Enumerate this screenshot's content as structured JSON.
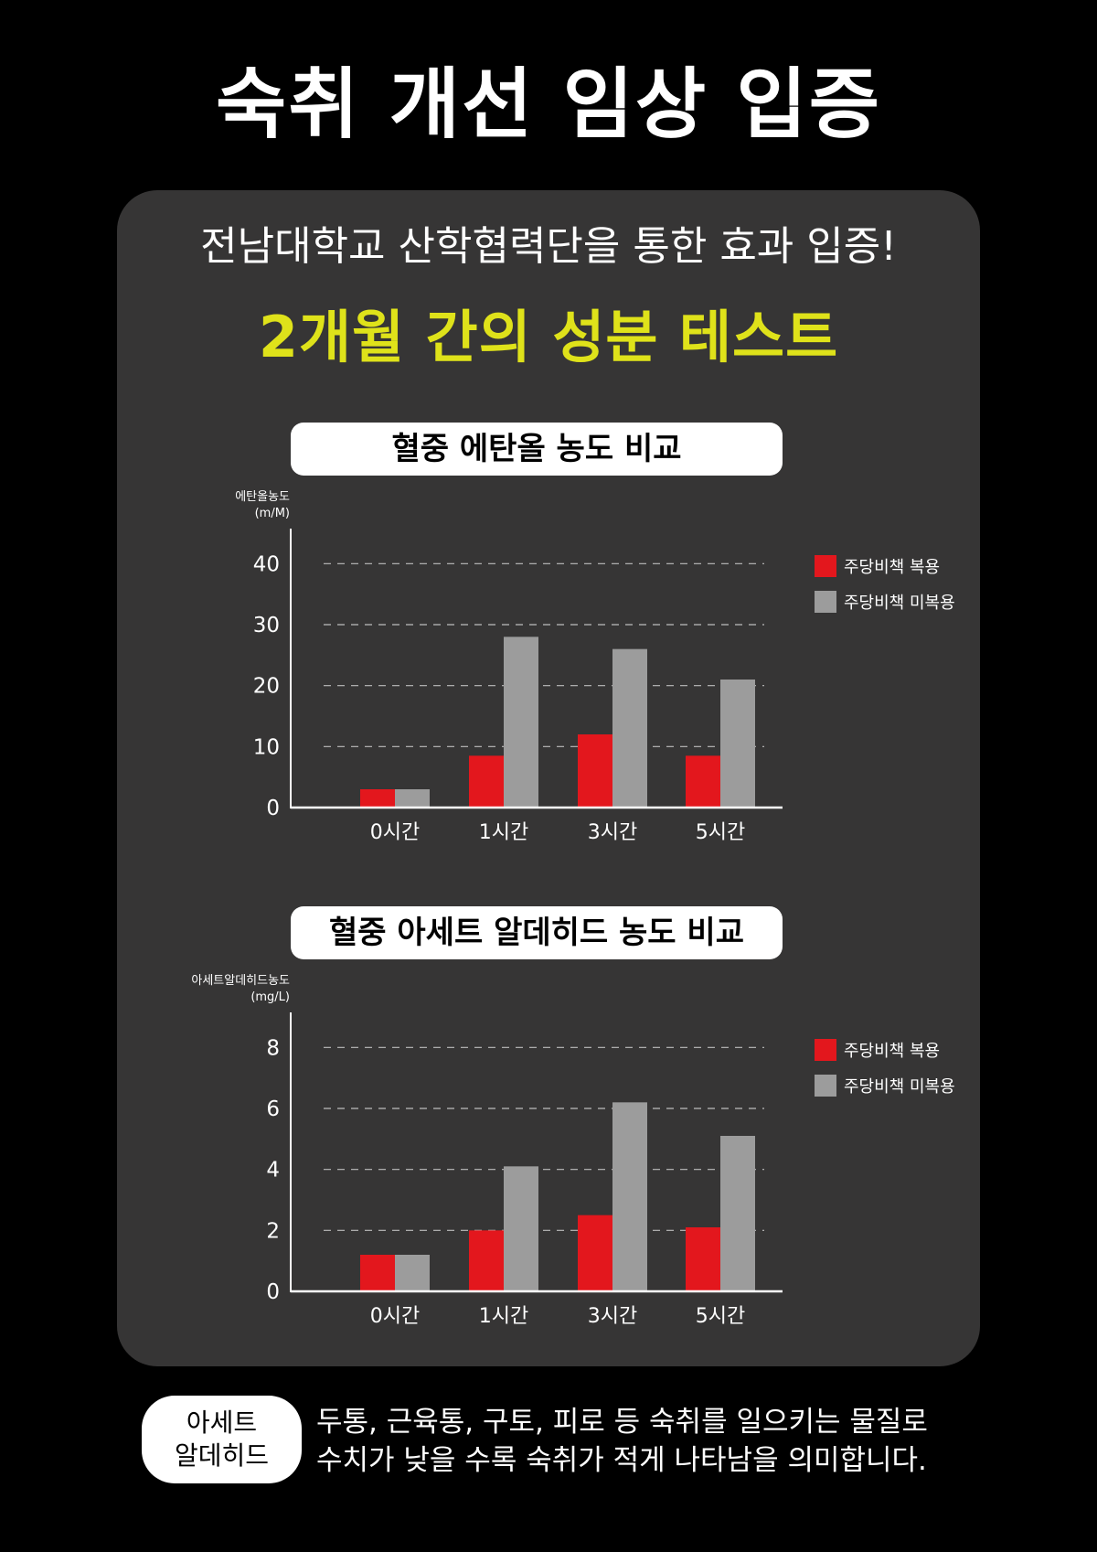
{
  "main_title": "숙취 개선 임상 입증",
  "subtitle": "전남대학교 산학협력단을 통한 효과 입증!",
  "headline": "2개월 간의 성분 테스트",
  "colors": {
    "taking": "#e3171d",
    "not_taking": "#9c9c9c",
    "headline": "#dfe21a",
    "panel": "#363535"
  },
  "chart_data": [
    {
      "type": "bar",
      "title": "혈중 에탄올 농도 비교",
      "ylabel_line1": "에탄올농도",
      "ylabel_line2": "(m/M)",
      "categories": [
        "0시간",
        "1시간",
        "3시간",
        "5시간"
      ],
      "yticks": [
        0,
        10,
        20,
        30,
        40
      ],
      "ylim": [
        0,
        45
      ],
      "grid": true,
      "legend_position": "right",
      "series": [
        {
          "name": "주당비책 복용",
          "values": [
            3,
            8.5,
            12,
            8.5
          ]
        },
        {
          "name": "주당비책 미복용",
          "values": [
            3,
            28,
            26,
            21
          ]
        }
      ]
    },
    {
      "type": "bar",
      "title": "혈중 아세트 알데히드 농도 비교",
      "ylabel_line1": "아세트알데히드농도",
      "ylabel_line2": "(mg/L)",
      "categories": [
        "0시간",
        "1시간",
        "3시간",
        "5시간"
      ],
      "yticks": [
        0,
        2,
        4,
        6,
        8
      ],
      "ylim": [
        0,
        9
      ],
      "grid": true,
      "legend_position": "right",
      "series": [
        {
          "name": "주당비책 복용",
          "values": [
            1.2,
            2.0,
            2.5,
            2.1
          ]
        },
        {
          "name": "주당비책 미복용",
          "values": [
            1.2,
            4.1,
            6.2,
            5.1
          ]
        }
      ]
    }
  ],
  "footnote": {
    "badge_line1": "아세트",
    "badge_line2": "알데히드",
    "line1": "두통, 근육통, 구토, 피로 등 숙취를 일으키는 물질로",
    "line2": "수치가 낮을 수록 숙취가 적게 나타남을 의미합니다."
  }
}
